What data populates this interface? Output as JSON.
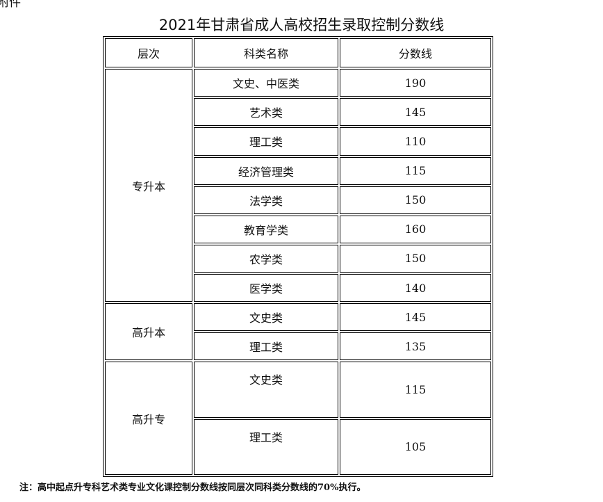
{
  "attachment_label": "附件",
  "title": "2021年甘肃省成人高校招生录取控制分数线",
  "headers": [
    "层次",
    "科类名称",
    "分数线"
  ],
  "groups": [
    {
      "level": "专升本",
      "rows": [
        [
          "文史、中医类",
          "190"
        ],
        [
          "艺术类",
          "145"
        ],
        [
          "理工类",
          "110"
        ],
        [
          "经济管理类",
          "115"
        ],
        [
          "法学类",
          "150"
        ],
        [
          "教育学类",
          "160"
        ],
        [
          "农学类",
          "150"
        ],
        [
          "医学类",
          "140"
        ]
      ]
    },
    {
      "level": "高升本",
      "rows": [
        [
          "文史类",
          "145"
        ],
        [
          "理工类",
          "135"
        ]
      ]
    },
    {
      "level": "高升专",
      "rows": [
        [
          "文史类",
          "115"
        ],
        [
          "理工类",
          "105"
        ]
      ]
    }
  ],
  "note": "注：高中起点升专科艺术类专业文化课控制分数线按同层次同科类分数线的70%执行。"
}
